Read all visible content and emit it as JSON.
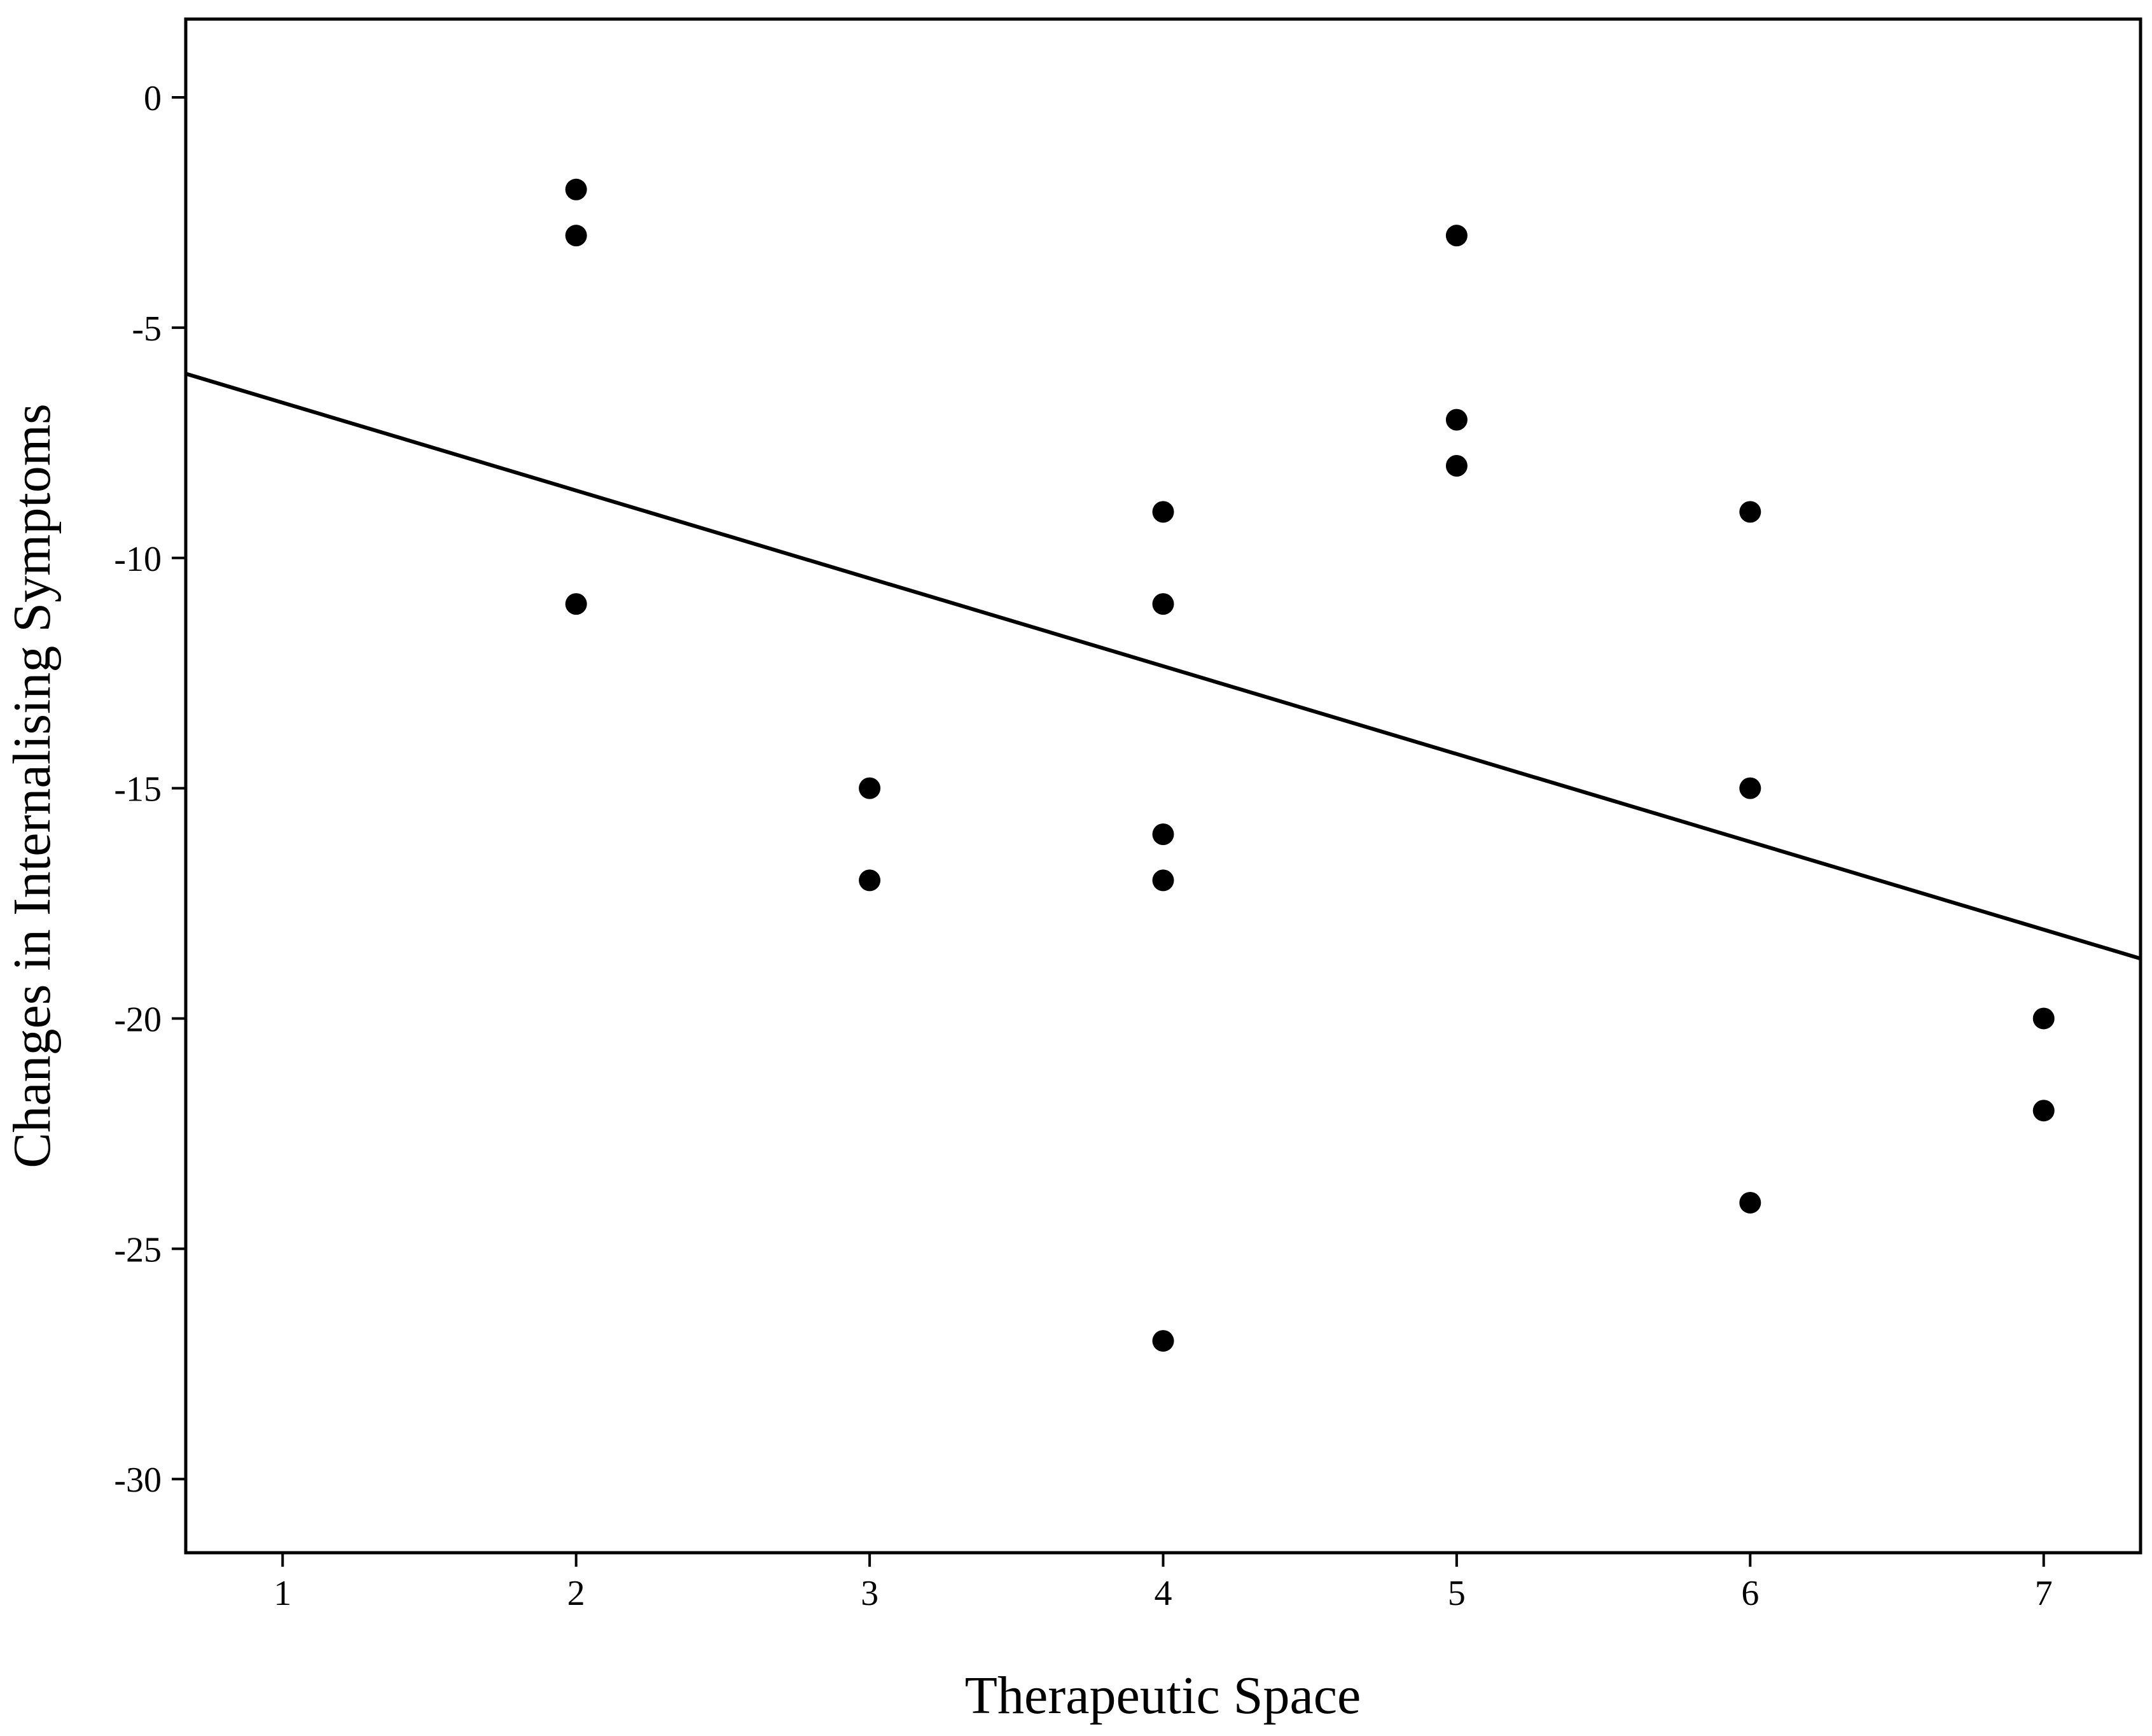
{
  "chart_data": {
    "type": "scatter",
    "title": "",
    "xlabel": "Therapeutic Space",
    "ylabel": "Changes in Internalising Symptoms",
    "xlim": [
      0.67,
      7.33
    ],
    "ylim": [
      -31.6,
      1.7
    ],
    "x_ticks": [
      1,
      2,
      3,
      4,
      5,
      6,
      7
    ],
    "y_ticks": [
      0,
      -5,
      -10,
      -15,
      -20,
      -25,
      -30
    ],
    "x_tick_labels": [
      "1",
      "2",
      "3",
      "4",
      "5",
      "6",
      "7"
    ],
    "y_tick_labels": [
      "0",
      "-5",
      "-10",
      "-15",
      "-20",
      "-25",
      "-30"
    ],
    "grid": false,
    "points": [
      {
        "x": 2,
        "y": -2
      },
      {
        "x": 2,
        "y": -3
      },
      {
        "x": 2,
        "y": -11
      },
      {
        "x": 3,
        "y": -15
      },
      {
        "x": 3,
        "y": -17
      },
      {
        "x": 4,
        "y": -9
      },
      {
        "x": 4,
        "y": -11
      },
      {
        "x": 4,
        "y": -16
      },
      {
        "x": 4,
        "y": -17
      },
      {
        "x": 4,
        "y": -27
      },
      {
        "x": 5,
        "y": -3
      },
      {
        "x": 5,
        "y": -7
      },
      {
        "x": 5,
        "y": -8
      },
      {
        "x": 6,
        "y": -9
      },
      {
        "x": 6,
        "y": -15
      },
      {
        "x": 6,
        "y": -24
      },
      {
        "x": 7,
        "y": -20
      },
      {
        "x": 7,
        "y": -22
      }
    ],
    "fit_line": {
      "type": "linear",
      "points": [
        {
          "x": 0.67,
          "y": -6.0
        },
        {
          "x": 7.33,
          "y": -18.7
        }
      ]
    },
    "colors": {
      "marker": "#000000",
      "line": "#000000",
      "frame": "#000000"
    }
  }
}
